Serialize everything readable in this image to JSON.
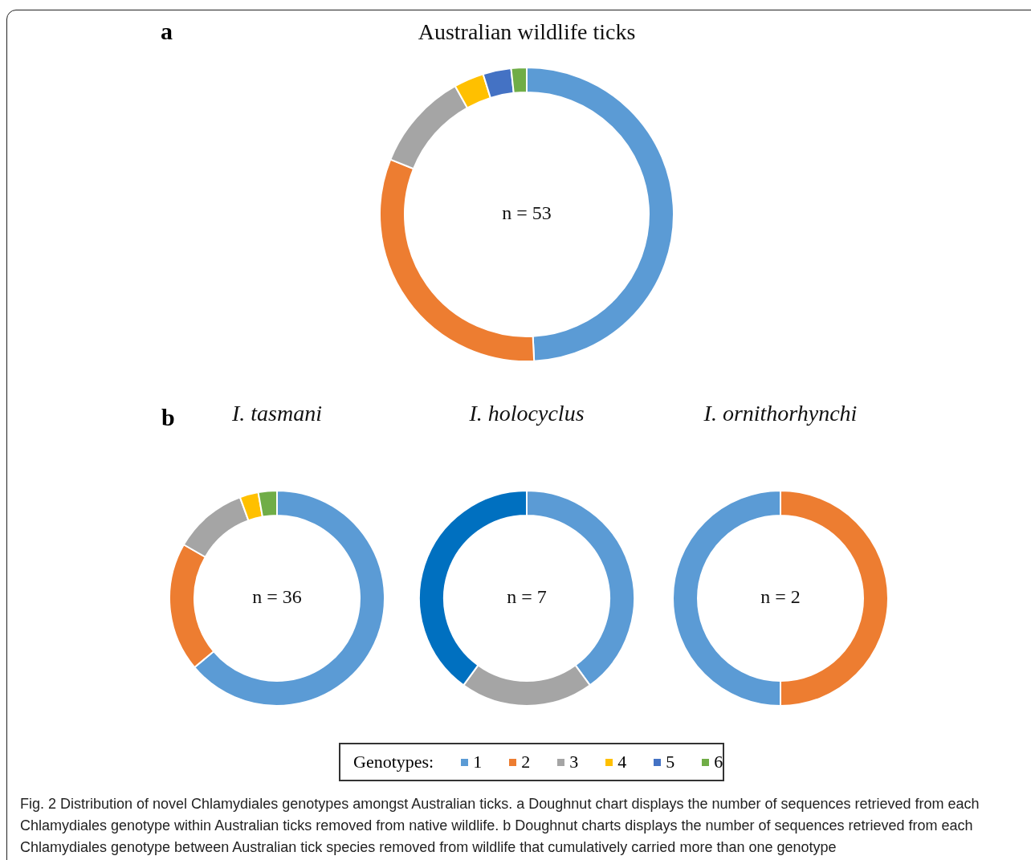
{
  "chart_data": [
    {
      "type": "donut",
      "title": "Australian wildlife ticks",
      "categories": [
        "1",
        "2",
        "3",
        "4",
        "5",
        "6"
      ],
      "values": [
        49.2,
        31.9,
        10.8,
        3.3,
        3.1,
        1.7
      ],
      "colors": [
        "#5b9bd5",
        "#ed7d31",
        "#a5a5a5",
        "#ffc000",
        "#4472c4",
        "#70ad47"
      ],
      "legend": "bottom",
      "legend_title": "Genotypes:",
      "annotations": [
        "a",
        "Fig. 2 Distribution of novel Chlamydiales genotypes amongst Australian ticks. a Doughnut chart displays the number of sequences retrieved from each Chlamydiales genotype within Australian ticks removed from native wildlife. b Doughnut charts displays the number of sequences retrieved from each Chlamydiales genotype between Australian tick species removed from wildlife that cumulatively carried more than one genotype",
        "n = 53"
      ]
    },
    {
      "type": "donut",
      "title": "I. tasmani",
      "categories": [
        null,
        null,
        null,
        null,
        null
      ],
      "values": [
        63.9,
        19.4,
        11.1,
        2.8,
        2.8
      ],
      "colors": [
        "#5b9bd5",
        "#ed7d31",
        "#a5a5a5",
        "#ffc000",
        "#70ad47"
      ],
      "annotations": [
        "b",
        "n = 36"
      ]
    },
    {
      "type": "donut",
      "title": "I. holocyclus",
      "categories": [
        null,
        null,
        null
      ],
      "values": [
        40,
        20,
        40
      ],
      "colors": [
        "#5b9bd5",
        "#a5a5a5",
        "#0070c0"
      ],
      "annotations": [
        "n = 7"
      ]
    },
    {
      "type": "donut",
      "title": "I. ornithorhynchi",
      "categories": [
        null,
        null
      ],
      "values": [
        50,
        50
      ],
      "colors": [
        "#ed7d31",
        "#5b9bd5"
      ],
      "annotations": [
        "n = 2"
      ]
    }
  ]
}
